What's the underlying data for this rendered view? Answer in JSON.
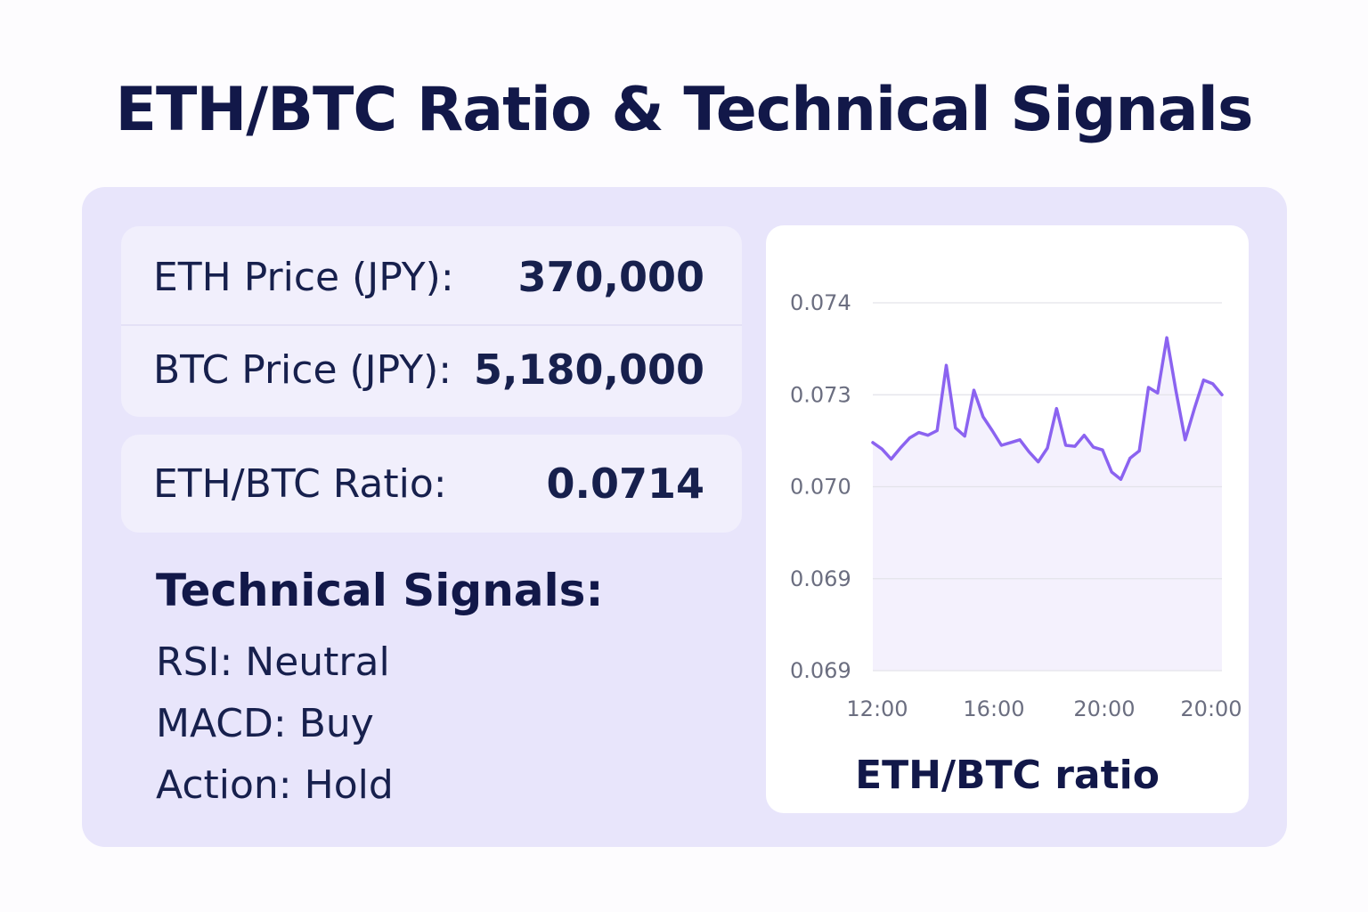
{
  "title": "ETH/BTC Ratio & Technical Signals",
  "prices": {
    "eth_label": "ETH Price (JPY):",
    "eth_value": "370,000",
    "btc_label": "BTC Price (JPY):",
    "btc_value": "5,180,000"
  },
  "ratio": {
    "label": "ETH/BTC Ratio:",
    "value": "0.0714"
  },
  "signals": {
    "heading": "Technical Signals:",
    "rsi": "RSI: Neutral",
    "macd": "MACD: Buy",
    "action": "Action: Hold"
  },
  "colors": {
    "line": "#8b63f0",
    "area": "#f4f1fd",
    "grid": "#e3e3ea",
    "tick": "#6b6e80"
  },
  "chart_data": {
    "type": "line",
    "title": "ETH/BTC ratio",
    "y_tick_labels": [
      "0.074",
      "0.073",
      "0.070",
      "0.069",
      "0.069"
    ],
    "x_tick_labels": [
      "12:00",
      "16:00",
      "20:00",
      "20:00"
    ],
    "grid": true,
    "series": [
      {
        "values": [
          2.48,
          2.41,
          2.3,
          2.42,
          2.53,
          2.59,
          2.56,
          2.61,
          3.32,
          2.64,
          2.55,
          3.05,
          2.76,
          2.61,
          2.45,
          2.48,
          2.51,
          2.38,
          2.27,
          2.42,
          2.85,
          2.45,
          2.44,
          2.56,
          2.43,
          2.4,
          2.16,
          2.08,
          2.31,
          2.39,
          3.08,
          3.02,
          3.62,
          3.04,
          2.51,
          2.85,
          3.16,
          3.12,
          3.0
        ]
      }
    ]
  }
}
